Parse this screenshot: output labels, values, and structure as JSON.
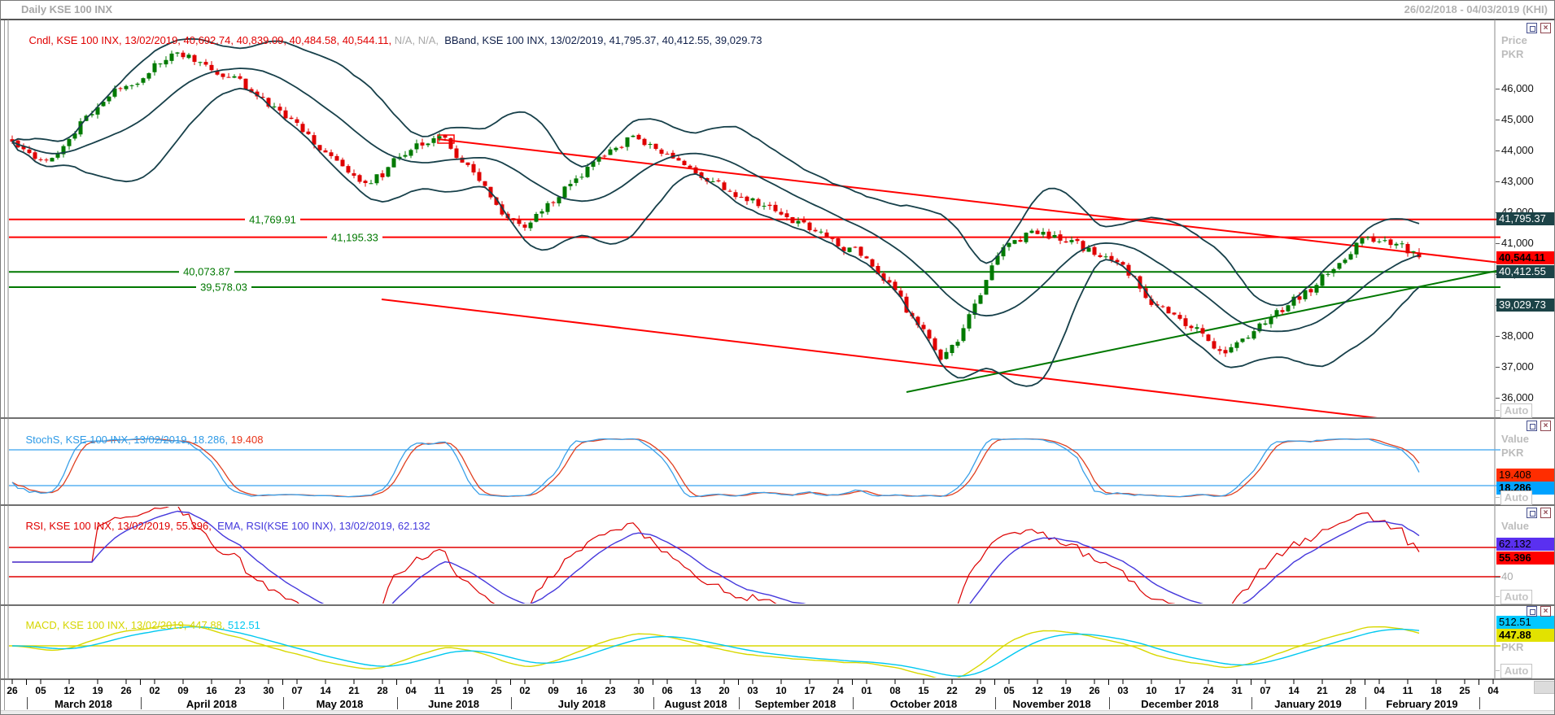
{
  "window": {
    "title": "Daily KSE 100 INX",
    "date_range": "26/02/2018 - 04/03/2019 (KHI)"
  },
  "colors": {
    "candle_up": "#007A00",
    "candle_down": "#DF0000",
    "bollinger": "#17404A",
    "red_line": "#FF0000",
    "green_line": "#007800",
    "line_label_text": "#007800",
    "badge_band_bg": "#1C4347",
    "badge_close_bg": "#FF0000",
    "stoch_k_line": "#3AA0E8",
    "stoch_d_line": "#E04020",
    "stoch_level": "#58B2F2",
    "stoch_badge_d": "#FF2D00",
    "stoch_badge_k": "#00A2FF",
    "rsi_line": "#DC0000",
    "rsi_ema_line": "#4538DC",
    "rsi_level": "#E00000",
    "rsi_badge_ema": "#5A30F0",
    "rsi_badge_rsi": "#FF0000",
    "macd_line": "#D8D800",
    "macd_signal_line": "#00C8F0",
    "macd_zero": "#D8D800",
    "macd_badge_signal": "#00C8FF",
    "macd_badge_macd": "#E2E200",
    "legend_cndl": "#E00000",
    "legend_na": "#A8A8A8",
    "legend_bband": "#10204A",
    "legend_stoch_k": "#2E9AE6",
    "legend_stoch_d": "#E83318",
    "legend_rsi": "#E00000",
    "legend_rsi_ema": "#4338DC",
    "legend_macd": "#D6D600",
    "legend_macd_sig": "#00C8F0"
  },
  "price_panel": {
    "legend_cndl": "Cndl, KSE 100 INX, 13/02/2019, 40,692.74, 40,839.09, 40,484.58, 40,544.11,",
    "legend_na": " N/A, N/A,",
    "legend_bband": "  BBand, KSE 100 INX, 13/02/2019, 41,795.37, 40,412.55, 39,029.73",
    "scale_title": "Price",
    "scale_unit": "PKR",
    "auto_label": "Auto",
    "ticks": [
      {
        "label": "46,000",
        "value": 46000
      },
      {
        "label": "45,000",
        "value": 45000
      },
      {
        "label": "44,000",
        "value": 44000
      },
      {
        "label": "43,000",
        "value": 43000
      },
      {
        "label": "42,000",
        "value": 42000
      },
      {
        "label": "41,000",
        "value": 41000
      },
      {
        "label": "40,000",
        "value": 40000
      },
      {
        "label": "39,000",
        "value": 39000
      },
      {
        "label": "38,000",
        "value": 38000
      },
      {
        "label": "37,000",
        "value": 37000
      },
      {
        "label": "36,000",
        "value": 36000
      }
    ],
    "badges": [
      {
        "label": "41,795.37",
        "style": "band"
      },
      {
        "label": "40,544.11",
        "style": "close"
      },
      {
        "label": "40,412.55",
        "style": "band"
      },
      {
        "label": "39,029.73",
        "style": "band"
      }
    ],
    "hlines": [
      {
        "label": "41,769.91",
        "value": 41769.91,
        "color": "red"
      },
      {
        "label": "41,195.33",
        "value": 41195.33,
        "color": "red"
      },
      {
        "label": "40,073.87",
        "value": 40073.87,
        "color": "green"
      },
      {
        "label": "39,578.03",
        "value": 39578.03,
        "color": "green"
      }
    ]
  },
  "stoch_panel": {
    "legend_k": "StochS, KSE 100 INX, 13/02/2019, 18.286,",
    "legend_d": " 19.408",
    "scale_title": "Value",
    "scale_unit": "PKR",
    "auto_label": "Auto",
    "badges": [
      {
        "label": "19.408",
        "series": "d"
      },
      {
        "label": "18.286",
        "series": "k"
      }
    ],
    "levels": [
      80,
      20
    ]
  },
  "rsi_panel": {
    "legend_rsi": "RSI, KSE 100 INX, 13/02/2019, 55.396,",
    "legend_ema": "  EMA, RSI(KSE 100 INX), 13/02/2019, 62.132",
    "scale_title": "Value",
    "auto_label": "Auto",
    "tick_label": "40",
    "tick_value": 40,
    "badges": [
      {
        "label": "62.132",
        "series": "ema"
      },
      {
        "label": "55.396",
        "series": "rsi"
      }
    ],
    "levels": [
      60,
      40
    ]
  },
  "macd_panel": {
    "legend_macd": "MACD, KSE 100 INX, 13/02/2019, 447.88,",
    "legend_signal": " 512.51",
    "scale_unit": "PKR",
    "auto_label": "Auto",
    "badges": [
      {
        "label": "512.51",
        "series": "signal"
      },
      {
        "label": "447.88",
        "series": "macd"
      }
    ]
  },
  "x_axis": {
    "week_labels": [
      "26",
      "05",
      "12",
      "19",
      "26",
      "02",
      "09",
      "16",
      "23",
      "30",
      "07",
      "14",
      "21",
      "28",
      "04",
      "11",
      "19",
      "25",
      "02",
      "09",
      "16",
      "23",
      "30",
      "06",
      "13",
      "20",
      "03",
      "10",
      "17",
      "24",
      "01",
      "08",
      "15",
      "22",
      "29",
      "05",
      "12",
      "19",
      "26",
      "03",
      "10",
      "17",
      "24",
      "31",
      "07",
      "14",
      "21",
      "28",
      "04",
      "11",
      "18",
      "25",
      "04"
    ],
    "months": [
      "March 2018",
      "April 2018",
      "May 2018",
      "June 2018",
      "July 2018",
      "August 2018",
      "September 2018",
      "October 2018",
      "November 2018",
      "December 2018",
      "January 2019",
      "February 2019"
    ]
  },
  "chart_data": {
    "type": "candlestick",
    "symbol": "KSE 100 INX",
    "timeframe": "Daily",
    "visible_range": "26/02/2018 - 04/03/2019",
    "last_bar": {
      "date": "13/02/2019",
      "open": 40692.74,
      "high": 40839.09,
      "low": 40484.58,
      "close": 40544.11
    },
    "bollinger_last": {
      "upper": 41795.37,
      "middle": 40412.55,
      "lower": 39029.73
    },
    "weekly_close_estimates": {
      "note": "approximate weekly closes read from chart pixels, one per x-axis week tick from 26/02/2018 to 13/02/2019",
      "values": [
        44250,
        43700,
        44500,
        45650,
        46150,
        46850,
        47150,
        46550,
        46200,
        45350,
        44850,
        43950,
        42900,
        43200,
        44150,
        44600,
        43500,
        42200,
        41350,
        42300,
        43200,
        43900,
        44500,
        43850,
        43300,
        42800,
        42400,
        42000,
        41600,
        41100,
        40750,
        39700,
        38300,
        37100,
        38800,
        41000,
        41350,
        41200,
        40700,
        40500,
        39500,
        38600,
        38200,
        37400,
        38300,
        38900,
        39500,
        40400,
        41400,
        40850,
        40544.11
      ]
    },
    "horizontal_levels": [
      {
        "value": 41769.91,
        "color": "red"
      },
      {
        "value": 41195.33,
        "color": "red"
      },
      {
        "value": 40073.87,
        "color": "green"
      },
      {
        "value": 39578.03,
        "color": "green"
      }
    ],
    "trendlines": [
      {
        "color": "red",
        "approx_start": {
          "date": "12/06/2018",
          "price": 44370
        },
        "approx_end": {
          "date": "04/03/2019",
          "price": 40370
        }
      },
      {
        "color": "red",
        "approx_start": {
          "date": "28/05/2018",
          "price": 39180
        },
        "approx_end": {
          "date": "18/02/2019",
          "price": 35340
        }
      },
      {
        "color": "green",
        "approx_start": {
          "date": "16/10/2018",
          "price": 36180
        },
        "approx_end": {
          "date": "04/03/2019",
          "price": 41130
        }
      }
    ],
    "indicators": {
      "stochastic": {
        "k": 18.286,
        "d": 19.408,
        "upper_band": 80,
        "lower_band": 20
      },
      "rsi": {
        "value": 55.396,
        "ema": 62.132,
        "upper_band": 60,
        "lower_band": 40
      },
      "macd": {
        "macd": 447.88,
        "signal": 512.51,
        "zero_line": 0
      }
    },
    "y_axis": {
      "label": "Price",
      "unit": "PKR",
      "min": 35800,
      "max": 47600,
      "gridlines": false
    }
  }
}
